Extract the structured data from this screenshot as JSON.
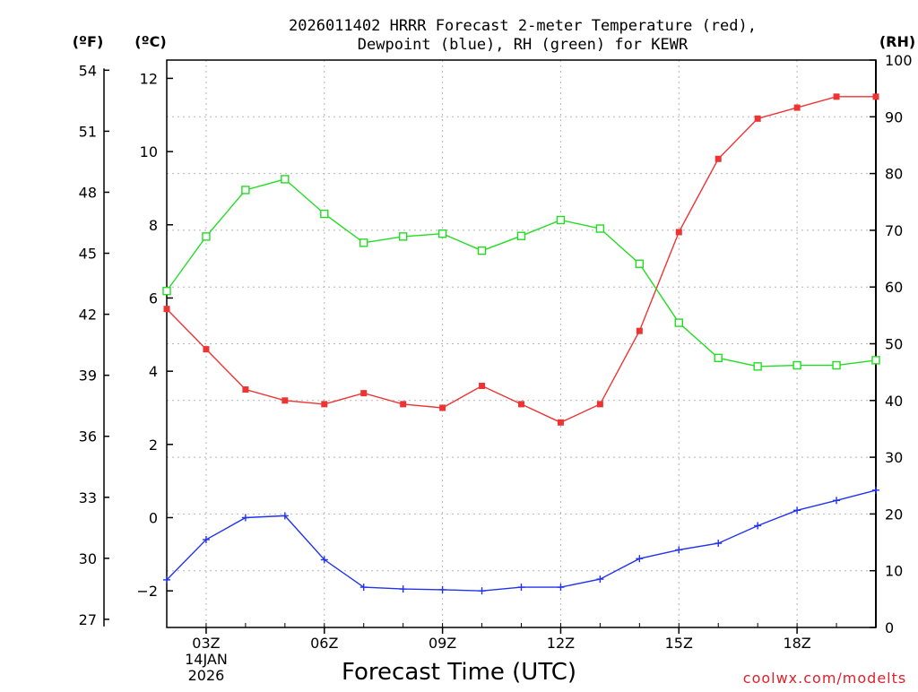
{
  "chart_data": {
    "type": "line",
    "title_lines": [
      "2026011402 HRRR Forecast 2-meter Temperature (red),",
      "Dewpoint (blue), RH (green) for KEWR"
    ],
    "xlabel": "Forecast Time (UTC)",
    "credit": "coolwx.com/modelts",
    "x_hours": [
      2,
      3,
      4,
      5,
      6,
      7,
      8,
      9,
      10,
      11,
      12,
      13,
      14,
      15,
      16,
      17,
      18,
      19,
      20
    ],
    "x_range": [
      2,
      20
    ],
    "x_ticks": [
      {
        "hour": 3,
        "label": "03Z",
        "sub1": "14JAN",
        "sub2": "2026"
      },
      {
        "hour": 6,
        "label": "06Z",
        "sub1": "",
        "sub2": ""
      },
      {
        "hour": 9,
        "label": "09Z",
        "sub1": "",
        "sub2": ""
      },
      {
        "hour": 12,
        "label": "12Z",
        "sub1": "",
        "sub2": ""
      },
      {
        "hour": 15,
        "label": "15Z",
        "sub1": "",
        "sub2": ""
      },
      {
        "hour": 18,
        "label": "18Z",
        "sub1": "",
        "sub2": ""
      }
    ],
    "celsius_axis": {
      "unit_label": "(ºC)",
      "range": [
        -3,
        12.5
      ],
      "ticks": [
        "-2",
        "0",
        "2",
        "4",
        "6",
        "8",
        "10",
        "12"
      ]
    },
    "fahrenheit_axis": {
      "unit_label": "(ºF)",
      "ticks": [
        "27",
        "30",
        "33",
        "36",
        "39",
        "42",
        "45",
        "48",
        "51",
        "54"
      ]
    },
    "rh_axis": {
      "unit_label": "(RH)",
      "range": [
        0,
        100
      ],
      "ticks": [
        "0",
        "10",
        "20",
        "30",
        "40",
        "50",
        "60",
        "70",
        "80",
        "90",
        "100"
      ]
    },
    "series": [
      {
        "name": "Temperature",
        "axis": "celsius",
        "color": "#ee3333",
        "marker": "filled-square",
        "values": [
          5.7,
          4.6,
          3.5,
          3.2,
          3.1,
          3.4,
          3.1,
          3.0,
          3.6,
          3.1,
          2.6,
          3.1,
          5.1,
          7.8,
          9.8,
          10.9,
          11.2,
          11.5,
          11.5
        ]
      },
      {
        "name": "Dewpoint",
        "axis": "celsius",
        "color": "#2233ee",
        "marker": "plus",
        "values": [
          -1.7,
          -0.6,
          0.0,
          0.05,
          -1.15,
          -1.9,
          -1.95,
          -1.97,
          -2.0,
          -1.9,
          -1.9,
          -1.68,
          -1.12,
          -0.88,
          -0.7,
          -0.22,
          0.2,
          0.47,
          0.75
        ]
      },
      {
        "name": "RH",
        "axis": "rh",
        "color": "#22dd22",
        "marker": "open-square",
        "values": [
          59.3,
          68.9,
          77.1,
          79.0,
          72.9,
          67.8,
          68.9,
          69.4,
          66.4,
          69.0,
          71.8,
          70.3,
          64.1,
          53.7,
          47.5,
          46.0,
          46.2,
          46.2,
          47.1
        ]
      }
    ]
  }
}
